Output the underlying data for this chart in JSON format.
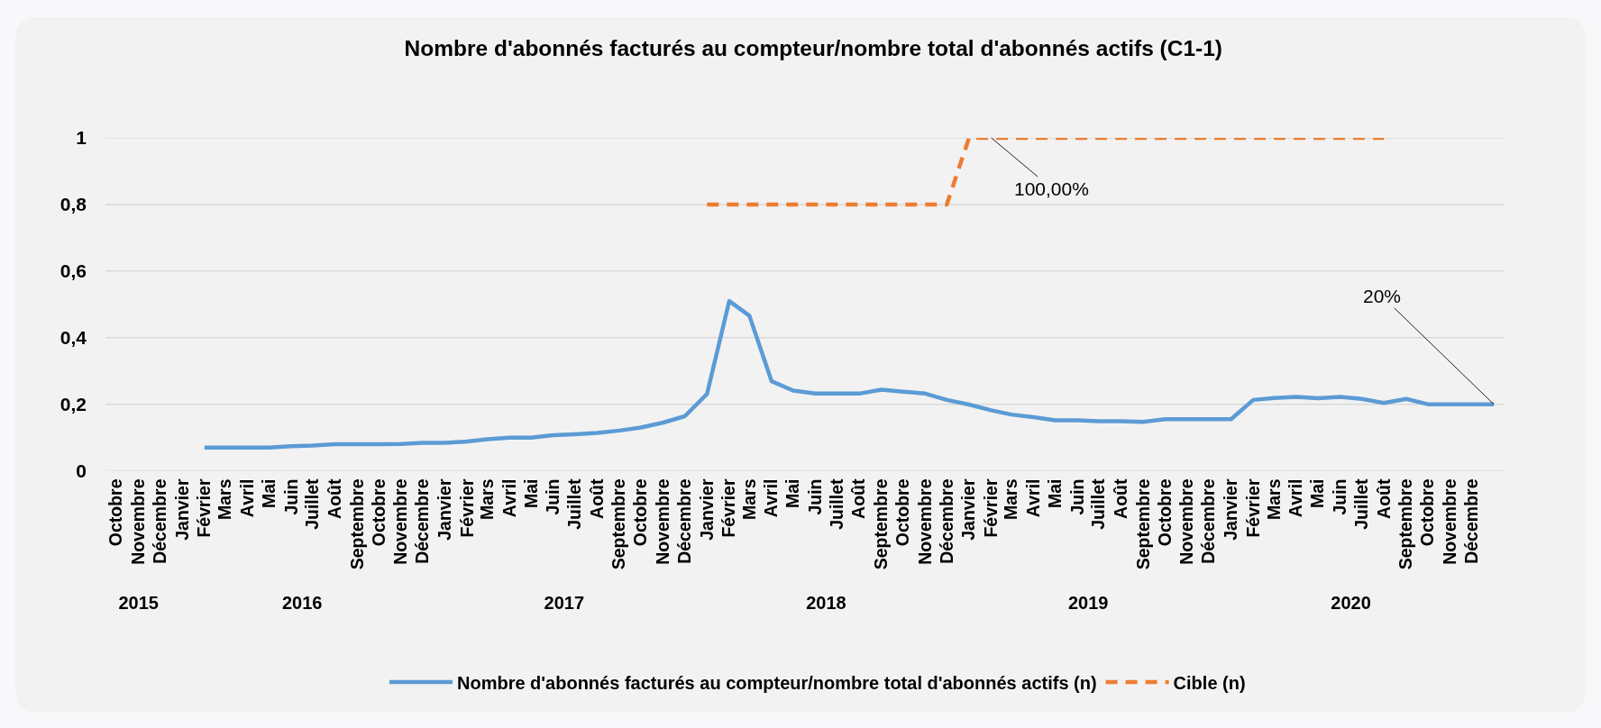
{
  "chart_data": {
    "type": "line",
    "title": "Nombre d'abonnés facturés au compteur/nombre total d'abonnés actifs (C1-1)",
    "x": [
      "2016-02",
      "2016-03",
      "2016-04",
      "2016-05",
      "2016-06",
      "2016-07",
      "2016-08",
      "2016-09",
      "2016-10",
      "2016-11",
      "2016-12",
      "2017-01",
      "2017-02",
      "2017-03",
      "2017-04",
      "2017-05",
      "2017-06",
      "2017-07",
      "2017-08",
      "2017-09",
      "2017-10",
      "2017-11",
      "2017-12",
      "2018-01",
      "2018-02",
      "2018-03",
      "2018-04",
      "2018-05",
      "2018-06",
      "2018-07",
      "2018-08",
      "2018-09",
      "2018-10",
      "2018-11",
      "2018-12",
      "2019-01",
      "2019-02",
      "2019-03",
      "2019-04",
      "2019-05",
      "2019-06",
      "2019-07",
      "2019-08",
      "2019-09",
      "2019-10",
      "2019-11",
      "2019-12",
      "2020-01",
      "2020-02",
      "2020-03",
      "2020-04",
      "2020-05",
      "2020-06",
      "2020-07",
      "2020-08",
      "2020-09",
      "2020-10",
      "2020-11",
      "2020-12",
      "2021-01"
    ],
    "series": [
      {
        "name": "Nombre d'abonnés facturés au compteur/nombre total d'abonnés actifs (n)",
        "color": "#5b9bd5",
        "line_style": "solid",
        "values": [
          0.07,
          0.07,
          0.07,
          0.07,
          0.074,
          0.076,
          0.08,
          0.08,
          0.08,
          0.081,
          0.084,
          0.084,
          0.088,
          0.095,
          0.1,
          0.1,
          0.107,
          0.11,
          0.114,
          0.121,
          0.13,
          0.145,
          0.164,
          0.231,
          0.51,
          0.466,
          0.269,
          0.241,
          0.232,
          0.232,
          0.232,
          0.244,
          0.238,
          0.232,
          0.213,
          0.199,
          0.182,
          0.169,
          0.161,
          0.152,
          0.152,
          0.149,
          0.149,
          0.147,
          0.155,
          0.155,
          0.155,
          0.155,
          0.213,
          0.219,
          0.222,
          0.218,
          0.222,
          0.216,
          0.204,
          0.216,
          0.2,
          0.2,
          0.2,
          0.2
        ]
      },
      {
        "name": "Cible (n)",
        "color": "#ed7d31",
        "line_style": "dashed",
        "values": [
          null,
          null,
          null,
          null,
          null,
          null,
          null,
          null,
          null,
          null,
          null,
          null,
          null,
          null,
          null,
          null,
          null,
          null,
          null,
          null,
          null,
          null,
          null,
          0.8,
          0.8,
          0.8,
          0.8,
          0.8,
          0.8,
          0.8,
          0.8,
          0.8,
          0.8,
          0.8,
          0.8,
          1,
          1,
          1,
          1,
          1,
          1,
          1,
          1,
          1,
          1,
          1,
          1,
          1,
          1,
          1,
          1,
          1,
          1,
          1,
          1,
          null,
          null,
          null,
          null,
          null
        ]
      }
    ],
    "xlim": [
      "2015-09-16",
      "2021-01-16"
    ],
    "xticks": [
      {
        "value": "2015-10",
        "label": "Octobre"
      },
      {
        "value": "2015-11",
        "label": "Novembre"
      },
      {
        "value": "2015-12",
        "label": "Décembre"
      },
      {
        "value": "2016-01",
        "label": "Janvier"
      },
      {
        "value": "2016-02",
        "label": "Février"
      },
      {
        "value": "2016-03",
        "label": "Mars"
      },
      {
        "value": "2016-04",
        "label": "Avril"
      },
      {
        "value": "2016-05",
        "label": "Mai"
      },
      {
        "value": "2016-06",
        "label": "Juin"
      },
      {
        "value": "2016-07",
        "label": "Juillet"
      },
      {
        "value": "2016-08",
        "label": "Août"
      },
      {
        "value": "2016-09",
        "label": "Septembre"
      },
      {
        "value": "2016-10",
        "label": "Octobre"
      },
      {
        "value": "2016-11",
        "label": "Novembre"
      },
      {
        "value": "2016-12",
        "label": "Décembre"
      },
      {
        "value": "2017-01",
        "label": "Janvier"
      },
      {
        "value": "2017-02",
        "label": "Février"
      },
      {
        "value": "2017-03",
        "label": "Mars"
      },
      {
        "value": "2017-04",
        "label": "Avril"
      },
      {
        "value": "2017-05",
        "label": "Mai"
      },
      {
        "value": "2017-06",
        "label": "Juin"
      },
      {
        "value": "2017-07",
        "label": "Juillet"
      },
      {
        "value": "2017-08",
        "label": "Août"
      },
      {
        "value": "2017-09",
        "label": "Septembre"
      },
      {
        "value": "2017-10",
        "label": "Octobre"
      },
      {
        "value": "2017-11",
        "label": "Novembre"
      },
      {
        "value": "2017-12",
        "label": "Décembre"
      },
      {
        "value": "2018-01",
        "label": "Janvier"
      },
      {
        "value": "2018-02",
        "label": "Février"
      },
      {
        "value": "2018-03",
        "label": "Mars"
      },
      {
        "value": "2018-04",
        "label": "Avril"
      },
      {
        "value": "2018-05",
        "label": "Mai"
      },
      {
        "value": "2018-06",
        "label": "Juin"
      },
      {
        "value": "2018-07",
        "label": "Juillet"
      },
      {
        "value": "2018-08",
        "label": "Août"
      },
      {
        "value": "2018-09",
        "label": "Septembre"
      },
      {
        "value": "2018-10",
        "label": "Octobre"
      },
      {
        "value": "2018-11",
        "label": "Novembre"
      },
      {
        "value": "2018-12",
        "label": "Décembre"
      },
      {
        "value": "2019-01",
        "label": "Janvier"
      },
      {
        "value": "2019-02",
        "label": "Février"
      },
      {
        "value": "2019-03",
        "label": "Mars"
      },
      {
        "value": "2019-04",
        "label": "Avril"
      },
      {
        "value": "2019-05",
        "label": "Mai"
      },
      {
        "value": "2019-06",
        "label": "Juin"
      },
      {
        "value": "2019-07",
        "label": "Juillet"
      },
      {
        "value": "2019-08",
        "label": "Août"
      },
      {
        "value": "2019-09",
        "label": "Septembre"
      },
      {
        "value": "2019-10",
        "label": "Octobre"
      },
      {
        "value": "2019-11",
        "label": "Novembre"
      },
      {
        "value": "2019-12",
        "label": "Décembre"
      },
      {
        "value": "2020-01",
        "label": "Janvier"
      },
      {
        "value": "2020-02",
        "label": "Février"
      },
      {
        "value": "2020-03",
        "label": "Mars"
      },
      {
        "value": "2020-04",
        "label": "Avril"
      },
      {
        "value": "2020-05",
        "label": "Mai"
      },
      {
        "value": "2020-06",
        "label": "Juin"
      },
      {
        "value": "2020-07",
        "label": "Juillet"
      },
      {
        "value": "2020-08",
        "label": "Août"
      },
      {
        "value": "2020-09",
        "label": "Septembre"
      },
      {
        "value": "2020-10",
        "label": "Octobre"
      },
      {
        "value": "2020-11",
        "label": "Novembre"
      },
      {
        "value": "2020-12",
        "label": "Décembre"
      }
    ],
    "x2lim": [
      "2015-09-16",
      "2021-01-16"
    ],
    "x2ticks": [
      {
        "value": "2015-11",
        "label": "2015"
      },
      {
        "value": "2016-06-16",
        "label": "2016"
      },
      {
        "value": "2017-06-16",
        "label": "2017"
      },
      {
        "value": "2018-06-16",
        "label": "2018"
      },
      {
        "value": "2019-06-16",
        "label": "2019"
      },
      {
        "value": "2020-06-16",
        "label": "2020"
      }
    ],
    "ylim": [
      0,
      1
    ],
    "yticks": [
      0,
      {
        "value": 0.2,
        "label": "0,2"
      },
      {
        "value": 0.4,
        "label": "0,4"
      },
      {
        "value": 0.6,
        "label": "0,6"
      },
      {
        "value": 0.8,
        "label": "0,8"
      },
      1
    ],
    "annotations": [
      {
        "text": "100,00%",
        "x": "2019-02",
        "y": 1
      },
      {
        "text": "20%",
        "x": "2021-01",
        "y": 0.2
      }
    ],
    "grid": "y",
    "legend": "bottom"
  }
}
